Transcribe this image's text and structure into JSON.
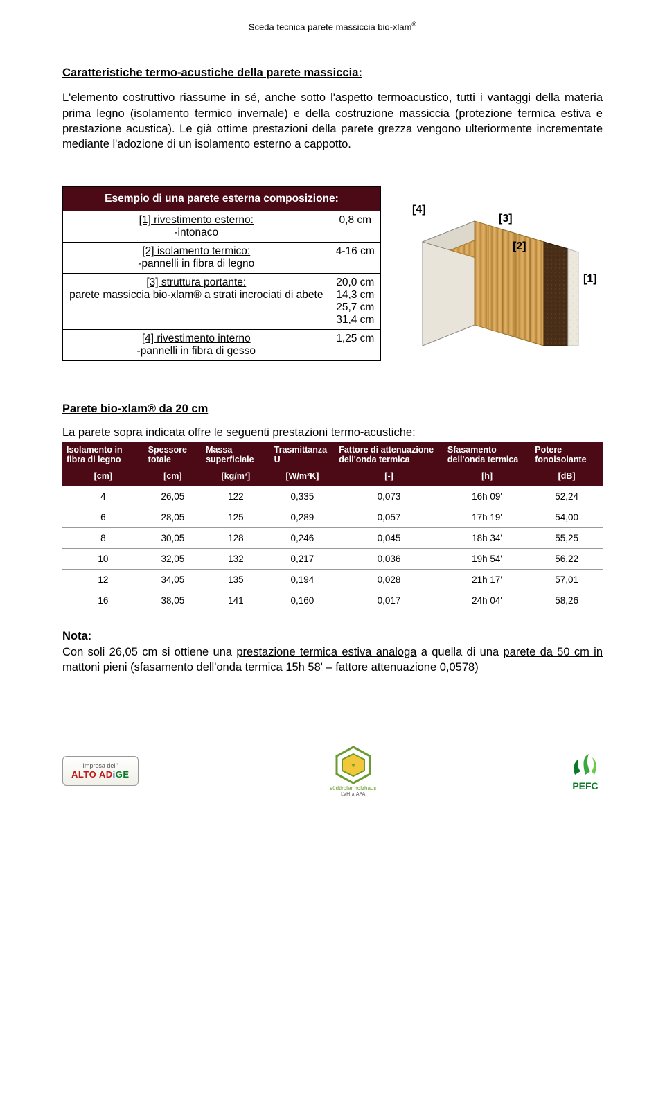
{
  "header": {
    "text": "Sceda tecnica parete massiccia bio-xlam",
    "sup": "®"
  },
  "section1": {
    "title": "Caratteristiche termo-acustiche della parete massiccia:",
    "body": "L'elemento costruttivo riassume in sé, anche sotto l'aspetto termoacustico, tutti i vantaggi della materia prima legno (isolamento termico invernale) e della costruzione massiccia (protezione termica estiva e prestazione acustica). Le già ottime prestazioni della parete grezza vengono ulteriormente incrementate mediante l'adozione di un isolamento esterno a cappotto."
  },
  "composition": {
    "title": "Esempio di una parete esterna composizione:",
    "rows": [
      {
        "label_u": "[1] rivestimento esterno:",
        "label_rest": "-intonaco",
        "value": "0,8 cm"
      },
      {
        "label_u": "[2] isolamento termico:",
        "label_rest": "-pannelli in fibra di legno",
        "value": "4-16 cm"
      },
      {
        "label_u": "[3] struttura portante:",
        "label_rest": "parete massiccia bio-xlam® a strati incrociati di abete",
        "value": "20,0 cm\n14,3 cm\n25,7 cm\n31,4 cm"
      },
      {
        "label_u": "[4] rivestimento interno",
        "label_rest": "-pannelli in fibra di gesso",
        "value": "1,25 cm"
      }
    ],
    "diagram_labels": {
      "l1": "[1]",
      "l2": "[2]",
      "l3": "[3]",
      "l4": "[4]"
    }
  },
  "section2": {
    "title": "Parete bio-xlam® da 20 cm",
    "intro": "La parete sopra indicata offre le seguenti prestazioni termo-acustiche:"
  },
  "perf_table": {
    "headers": [
      "Isolamento in fibra di legno",
      "Spessore totale",
      "Massa superficiale",
      "Trasmittanza U",
      "Fattore di attenuazione dell'onda termica",
      "Sfasamento dell'onda termica",
      "Potere fonoisolante"
    ],
    "units": [
      "[cm]",
      "[cm]",
      "[kg/m²]",
      "[W/m²K]",
      "[-]",
      "[h]",
      "[dB]"
    ],
    "rows": [
      [
        "4",
        "26,05",
        "122",
        "0,335",
        "0,073",
        "16h 09'",
        "52,24"
      ],
      [
        "6",
        "28,05",
        "125",
        "0,289",
        "0,057",
        "17h 19'",
        "54,00"
      ],
      [
        "8",
        "30,05",
        "128",
        "0,246",
        "0,045",
        "18h 34'",
        "55,25"
      ],
      [
        "10",
        "32,05",
        "132",
        "0,217",
        "0,036",
        "19h 54'",
        "56,22"
      ],
      [
        "12",
        "34,05",
        "135",
        "0,194",
        "0,028",
        "21h 17'",
        "57,01"
      ],
      [
        "16",
        "38,05",
        "141",
        "0,160",
        "0,017",
        "24h 04'",
        "58,26"
      ]
    ]
  },
  "note": {
    "label": "Nota:",
    "pre": "Con soli 26,05 cm si ottiene una ",
    "u1": "prestazione termica estiva analoga",
    "mid": " a quella di una ",
    "u2": "parete da 50 cm in mattoni pieni",
    "post": " (sfasamento dell'onda termica 15h 58' – fattore attenuazione 0,0578)"
  },
  "diagram_colors": {
    "layer4_gypsum": "#e8e4da",
    "layer3_wood_light": "#d9a85a",
    "layer3_wood_dark": "#b8853a",
    "layer2_fiber": "#4a2f18",
    "layer1_plaster": "#ece8dc",
    "outline": "#3a2a1a"
  },
  "logos": {
    "alto_top": "Impresa dell'",
    "alto_main1": "ALTO",
    "alto_main2": "AD",
    "alto_main3": "i",
    "alto_main4": "GE",
    "holzhaus_top": "südtiroler",
    "holzhaus_side": "holzhaus",
    "holzhaus_bottom": "LVH ∧ APA",
    "pefc": "PEFC"
  }
}
